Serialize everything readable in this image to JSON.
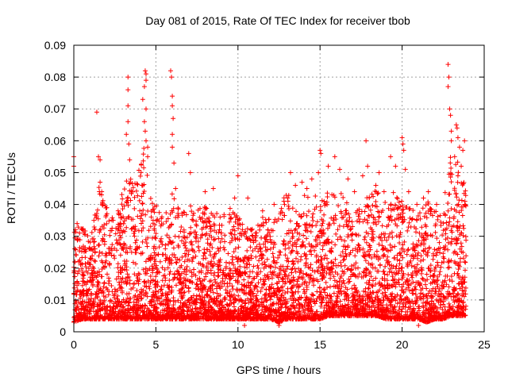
{
  "chart_data": {
    "type": "scatter",
    "title": "Day 081 of 2015, Rate Of TEC Index for receiver tbob",
    "xlabel": "GPS time / hours",
    "ylabel": "ROTI / TECUs",
    "xlim": [
      0,
      25
    ],
    "ylim": [
      0,
      0.09
    ],
    "x_ticks": [
      "0",
      "5",
      "10",
      "15",
      "20",
      "25"
    ],
    "y_ticks": [
      "0",
      "0.01",
      "0.02",
      "0.03",
      "0.04",
      "0.05",
      "0.06",
      "0.07",
      "0.08",
      "0.09"
    ],
    "grid": true,
    "legend": "none",
    "marker": "plus",
    "color": "#ff0000",
    "envelope": {
      "x": [
        0,
        0.5,
        1.0,
        1.5,
        2.0,
        2.5,
        3.0,
        3.3,
        3.6,
        4.0,
        4.3,
        4.6,
        5.0,
        5.5,
        6.0,
        6.5,
        7.0,
        7.5,
        8.0,
        8.5,
        9.0,
        9.5,
        10.0,
        10.5,
        11.0,
        11.5,
        12.0,
        12.5,
        13.0,
        13.5,
        14.0,
        14.5,
        15.0,
        15.5,
        16.0,
        16.5,
        17.0,
        17.5,
        18.0,
        18.5,
        19.0,
        19.5,
        20.0,
        20.5,
        21.0,
        21.5,
        22.0,
        22.5,
        23.0,
        23.5,
        23.9
      ],
      "upper": [
        0.033,
        0.034,
        0.03,
        0.047,
        0.04,
        0.036,
        0.045,
        0.05,
        0.048,
        0.055,
        0.058,
        0.045,
        0.04,
        0.036,
        0.044,
        0.038,
        0.04,
        0.038,
        0.04,
        0.038,
        0.036,
        0.04,
        0.037,
        0.034,
        0.033,
        0.036,
        0.036,
        0.038,
        0.045,
        0.04,
        0.043,
        0.042,
        0.047,
        0.045,
        0.044,
        0.043,
        0.038,
        0.04,
        0.043,
        0.046,
        0.041,
        0.044,
        0.041,
        0.039,
        0.038,
        0.042,
        0.038,
        0.04,
        0.058,
        0.052,
        0.045
      ],
      "lower": [
        0.003,
        0.004,
        0.004,
        0.004,
        0.004,
        0.004,
        0.004,
        0.004,
        0.004,
        0.004,
        0.004,
        0.004,
        0.004,
        0.004,
        0.004,
        0.004,
        0.004,
        0.004,
        0.004,
        0.004,
        0.004,
        0.004,
        0.004,
        0.004,
        0.004,
        0.004,
        0.004,
        0.003,
        0.004,
        0.004,
        0.004,
        0.004,
        0.004,
        0.005,
        0.005,
        0.005,
        0.005,
        0.005,
        0.005,
        0.005,
        0.004,
        0.004,
        0.004,
        0.004,
        0.004,
        0.003,
        0.004,
        0.004,
        0.005,
        0.005,
        0.005
      ]
    },
    "outliers": [
      [
        0.0,
        0.055
      ],
      [
        0.0,
        0.052
      ],
      [
        0.2,
        0.034
      ],
      [
        0.35,
        0.031
      ],
      [
        1.4,
        0.069
      ],
      [
        1.5,
        0.055
      ],
      [
        1.6,
        0.054
      ],
      [
        1.6,
        0.047
      ],
      [
        1.7,
        0.044
      ],
      [
        2.4,
        0.035
      ],
      [
        2.7,
        0.038
      ],
      [
        3.2,
        0.062
      ],
      [
        3.3,
        0.08
      ],
      [
        3.3,
        0.076
      ],
      [
        3.3,
        0.071
      ],
      [
        3.3,
        0.066
      ],
      [
        3.35,
        0.059
      ],
      [
        3.4,
        0.054
      ],
      [
        4.2,
        0.073
      ],
      [
        4.3,
        0.077
      ],
      [
        4.35,
        0.082
      ],
      [
        4.4,
        0.081
      ],
      [
        4.4,
        0.079
      ],
      [
        4.4,
        0.07
      ],
      [
        4.3,
        0.066
      ],
      [
        4.35,
        0.063
      ],
      [
        4.4,
        0.06
      ],
      [
        4.5,
        0.058
      ],
      [
        4.5,
        0.055
      ],
      [
        5.9,
        0.082
      ],
      [
        5.95,
        0.08
      ],
      [
        6.0,
        0.074
      ],
      [
        6.0,
        0.071
      ],
      [
        6.05,
        0.067
      ],
      [
        6.0,
        0.062
      ],
      [
        6.0,
        0.058
      ],
      [
        6.1,
        0.053
      ],
      [
        6.2,
        0.045
      ],
      [
        7.0,
        0.056
      ],
      [
        7.1,
        0.05
      ],
      [
        8.0,
        0.044
      ],
      [
        8.5,
        0.045
      ],
      [
        9.8,
        0.042
      ],
      [
        10.0,
        0.049
      ],
      [
        10.6,
        0.042
      ],
      [
        11.5,
        0.038
      ],
      [
        12.2,
        0.04
      ],
      [
        12.8,
        0.041
      ],
      [
        13.2,
        0.05
      ],
      [
        13.5,
        0.046
      ],
      [
        13.9,
        0.047
      ],
      [
        14.2,
        0.045
      ],
      [
        14.5,
        0.048
      ],
      [
        14.9,
        0.05
      ],
      [
        15.0,
        0.057
      ],
      [
        15.05,
        0.056
      ],
      [
        15.5,
        0.052
      ],
      [
        15.9,
        0.055
      ],
      [
        16.2,
        0.051
      ],
      [
        16.7,
        0.048
      ],
      [
        17.1,
        0.044
      ],
      [
        17.6,
        0.049
      ],
      [
        17.8,
        0.06
      ],
      [
        17.9,
        0.052
      ],
      [
        18.4,
        0.046
      ],
      [
        18.6,
        0.05
      ],
      [
        18.9,
        0.044
      ],
      [
        19.3,
        0.055
      ],
      [
        19.6,
        0.052
      ],
      [
        20.0,
        0.061
      ],
      [
        20.05,
        0.059
      ],
      [
        20.1,
        0.057
      ],
      [
        20.2,
        0.051
      ],
      [
        20.4,
        0.044
      ],
      [
        20.9,
        0.04
      ],
      [
        21.3,
        0.042
      ],
      [
        21.6,
        0.044
      ],
      [
        22.1,
        0.04
      ],
      [
        22.8,
        0.084
      ],
      [
        22.85,
        0.08
      ],
      [
        22.8,
        0.077
      ],
      [
        22.9,
        0.07
      ],
      [
        22.95,
        0.068
      ],
      [
        23.0,
        0.063
      ],
      [
        23.0,
        0.06
      ],
      [
        23.3,
        0.065
      ],
      [
        23.35,
        0.064
      ],
      [
        23.4,
        0.061
      ],
      [
        23.5,
        0.058
      ],
      [
        23.7,
        0.057
      ],
      [
        23.8,
        0.06
      ],
      [
        23.2,
        0.055
      ],
      [
        23.6,
        0.052
      ],
      [
        23.4,
        0.049
      ],
      [
        12.5,
        0.002
      ],
      [
        21.0,
        0.002
      ],
      [
        10.4,
        0.002
      ]
    ]
  }
}
